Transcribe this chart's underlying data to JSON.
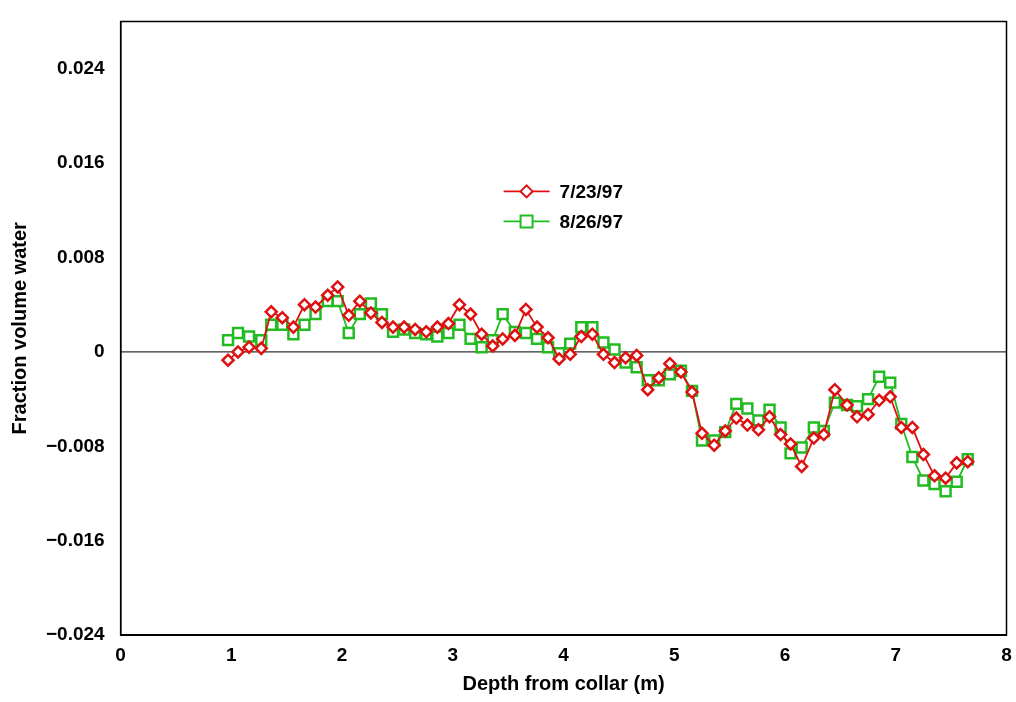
{
  "chart_data": {
    "type": "line",
    "xlabel": "Depth from collar (m)",
    "ylabel": "Fraction volume water",
    "x": [
      0.97,
      1.06,
      1.16,
      1.27,
      1.36,
      1.46,
      1.56,
      1.66,
      1.76,
      1.87,
      1.96,
      2.06,
      2.16,
      2.26,
      2.36,
      2.46,
      2.56,
      2.66,
      2.76,
      2.86,
      2.96,
      3.06,
      3.16,
      3.26,
      3.36,
      3.45,
      3.56,
      3.66,
      3.76,
      3.86,
      3.96,
      4.06,
      4.16,
      4.26,
      4.36,
      4.46,
      4.56,
      4.66,
      4.76,
      4.86,
      4.96,
      5.06,
      5.16,
      5.25,
      5.36,
      5.46,
      5.56,
      5.66,
      5.76,
      5.86,
      5.96,
      6.05,
      6.15,
      6.26,
      6.35,
      6.45,
      6.56,
      6.65,
      6.75,
      6.85,
      6.95,
      7.05,
      7.15,
      7.25,
      7.35,
      7.45,
      7.55,
      7.65
    ],
    "series": [
      {
        "name": "7/23/97",
        "color": "#dd1111",
        "marker": "diamond",
        "values": [
          -0.0007,
          0.0,
          0.0004,
          0.0003,
          0.0034,
          0.0029,
          0.0021,
          0.004,
          0.0038,
          0.0048,
          0.0055,
          0.0031,
          0.0043,
          0.0033,
          0.0025,
          0.0021,
          0.0021,
          0.0019,
          0.0017,
          0.0021,
          0.0024,
          0.004,
          0.0032,
          0.0015,
          0.0005,
          0.0011,
          0.0014,
          0.0036,
          0.0021,
          0.0012,
          -0.0006,
          -0.0002,
          0.0013,
          0.0015,
          -0.0002,
          -0.0009,
          -0.0005,
          -0.0003,
          -0.0032,
          -0.0022,
          -0.001,
          -0.0017,
          -0.0034,
          -0.0069,
          -0.0079,
          -0.0067,
          -0.0056,
          -0.0062,
          -0.0066,
          -0.0055,
          -0.007,
          -0.0078,
          -0.0097,
          -0.0073,
          -0.007,
          -0.0032,
          -0.0045,
          -0.0055,
          -0.0053,
          -0.0041,
          -0.0038,
          -0.0064,
          -0.0064,
          -0.0087,
          -0.0105,
          -0.0107,
          -0.0094,
          -0.0093
        ]
      },
      {
        "name": "8/26/97",
        "color": "#22bb22",
        "marker": "square",
        "values": [
          0.001,
          0.0016,
          0.0013,
          0.001,
          0.0023,
          0.0023,
          0.0015,
          0.0023,
          0.0032,
          0.0043,
          0.0043,
          0.0016,
          0.0032,
          0.0041,
          0.0032,
          0.0017,
          0.0019,
          0.0016,
          0.0015,
          0.0013,
          0.0016,
          0.0023,
          0.0011,
          0.0004,
          0.001,
          0.0032,
          0.0017,
          0.0016,
          0.0011,
          0.0004,
          -0.0001,
          0.0007,
          0.0021,
          0.0021,
          0.0008,
          0.0002,
          -0.0009,
          -0.0013,
          -0.0024,
          -0.0024,
          -0.0019,
          -0.0016,
          -0.0033,
          -0.0075,
          -0.0075,
          -0.0068,
          -0.0044,
          -0.0048,
          -0.0058,
          -0.0049,
          -0.0064,
          -0.0086,
          -0.0081,
          -0.0064,
          -0.0067,
          -0.0043,
          -0.0045,
          -0.0046,
          -0.004,
          -0.0021,
          -0.0026,
          -0.0061,
          -0.0089,
          -0.0109,
          -0.0112,
          -0.0118,
          -0.011,
          -0.0091
        ]
      }
    ],
    "xlim": [
      0,
      8
    ],
    "xticks": [
      0,
      1,
      2,
      3,
      4,
      5,
      6,
      7,
      8
    ],
    "ylim": [
      -0.024,
      0.028
    ],
    "yticks": [
      {
        "value": -0.024,
        "label": "−0.024"
      },
      {
        "value": -0.016,
        "label": "−0.016"
      },
      {
        "value": -0.008,
        "label": "−0.008"
      },
      0,
      {
        "value": 0.008,
        "label": "0.008"
      },
      {
        "value": 0.016,
        "label": "0.016"
      },
      {
        "value": 0.024,
        "label": "0.024"
      }
    ],
    "ref_lines": [
      {
        "axis": "y",
        "value": 0,
        "color": "#333333"
      }
    ],
    "legend": "top",
    "grid": false,
    "line_style": "solid"
  }
}
